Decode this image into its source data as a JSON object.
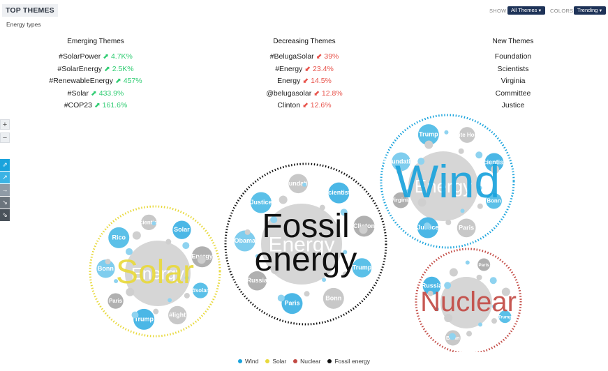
{
  "header": {
    "title": "TOP THEMES",
    "subtitle": "Energy types",
    "show_label": "SHOW",
    "show_value": "All Themes",
    "colors_label": "COLORS",
    "colors_value": "Trending"
  },
  "columns": {
    "emerging": {
      "title": "Emerging Themes",
      "items": [
        {
          "name": "#SolarPower",
          "change": "4.7K%"
        },
        {
          "name": "#SolarEnergy",
          "change": "2.5K%"
        },
        {
          "name": "#RenewableEnergy",
          "change": "457%"
        },
        {
          "name": "#Solar",
          "change": "433.9%"
        },
        {
          "name": "#COP23",
          "change": "161.6%"
        }
      ]
    },
    "decreasing": {
      "title": "Decreasing Themes",
      "items": [
        {
          "name": "#BelugaSolar",
          "change": "39%"
        },
        {
          "name": "#Energy",
          "change": "23.4%"
        },
        {
          "name": "Energy",
          "change": "14.5%"
        },
        {
          "name": "@belugasolar",
          "change": "12.8%"
        },
        {
          "name": "Clinton",
          "change": "12.6%"
        }
      ]
    },
    "new": {
      "title": "New Themes",
      "items": [
        "Foundation",
        "Scientists",
        "Virginia",
        "Committee",
        "Justice"
      ]
    }
  },
  "toolbar": {
    "zoom_in": "+",
    "zoom_out": "−"
  },
  "clusters": [
    {
      "key": "wind",
      "label": "Wind",
      "inner": "Energy",
      "color": "#1aa3dc",
      "bubbles": [
        "Bonn",
        "Paris",
        "Justice",
        "Virginia",
        "Foundation",
        "Trump",
        "White House",
        "Scientists"
      ]
    },
    {
      "key": "fossil",
      "label": "Fossil energy",
      "inner": "Energy",
      "color": "#111111",
      "bubbles": [
        "Trump",
        "Bonn",
        "Paris",
        "Russia",
        "Obama",
        "Justice",
        "Foundation",
        "Scientists",
        "Clinton"
      ]
    },
    {
      "key": "solar",
      "label": "Solar",
      "inner": "Energy",
      "color": "#e8d93c",
      "bubbles": [
        "#solar",
        "#light",
        "Trump",
        "Paris",
        "Bonn",
        "Rico",
        "Scientists",
        "Solar",
        "Energy"
      ]
    },
    {
      "key": "nuclear",
      "label": "Nuclear",
      "inner": "",
      "color": "#c24a44",
      "bubbles": [
        "Trump",
        "Bonn",
        "Russia",
        "Paris"
      ]
    }
  ],
  "legend": [
    {
      "label": "Wind",
      "color": "#1aa3dc"
    },
    {
      "label": "Solar",
      "color": "#e8d93c"
    },
    {
      "label": "Nuclear",
      "color": "#c24a44"
    },
    {
      "label": "Fossil energy",
      "color": "#111111"
    }
  ]
}
